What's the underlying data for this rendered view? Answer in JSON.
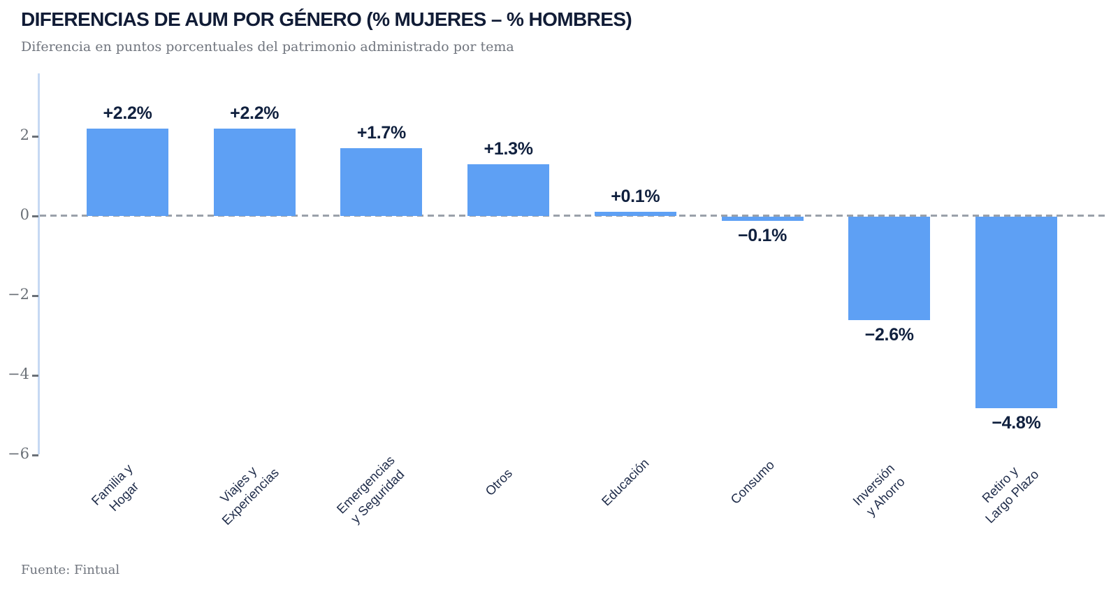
{
  "header": {
    "title": "DIFERENCIAS DE AUM POR GÉNERO (% MUJERES – % HOMBRES)",
    "subtitle": "Diferencia en puntos porcentuales del patrimonio administrado por tema"
  },
  "footer": {
    "source": "Fuente: Fintual"
  },
  "chart_data": {
    "type": "bar",
    "title": "DIFERENCIAS DE AUM POR GÉNERO (% MUJERES – % HOMBRES)",
    "subtitle": "Diferencia en puntos porcentuales del patrimonio administrado por tema",
    "source": "Fuente: Fintual",
    "categories": [
      "Familia y\nHogar",
      "Viajes y\nExperiencias",
      "Emergencias\ny Seguridad",
      "Otros",
      "Educación",
      "Consumo",
      "Inversión\ny Ahorro",
      "Retiro y\nLargo Plazo"
    ],
    "values": [
      2.2,
      2.2,
      1.7,
      1.3,
      0.1,
      -0.1,
      -2.6,
      -4.8
    ],
    "bar_labels": [
      "+2.2%",
      "+2.2%",
      "+1.7%",
      "+1.3%",
      "+0.1%",
      "−0.1%",
      "−2.6%",
      "−4.8%"
    ],
    "yticks": [
      2,
      0,
      -2,
      -4,
      -6
    ],
    "ytick_labels": [
      "2",
      "0",
      "−2",
      "−4",
      "−6"
    ],
    "ylim": [
      -6.4,
      3.6
    ],
    "xlabel": "",
    "ylabel": "",
    "grid": false,
    "legend": false,
    "zero_line_style": "dashed",
    "colors": {
      "bar": "#5EA0F4",
      "axis_line": "#C6D9F3",
      "zero_line": "#9AA1AA",
      "tick_label": "#6A7077",
      "title": "#111C36",
      "subtitle": "#70757E",
      "data_label": "#10203E",
      "category_label": "#1E2B49"
    }
  }
}
